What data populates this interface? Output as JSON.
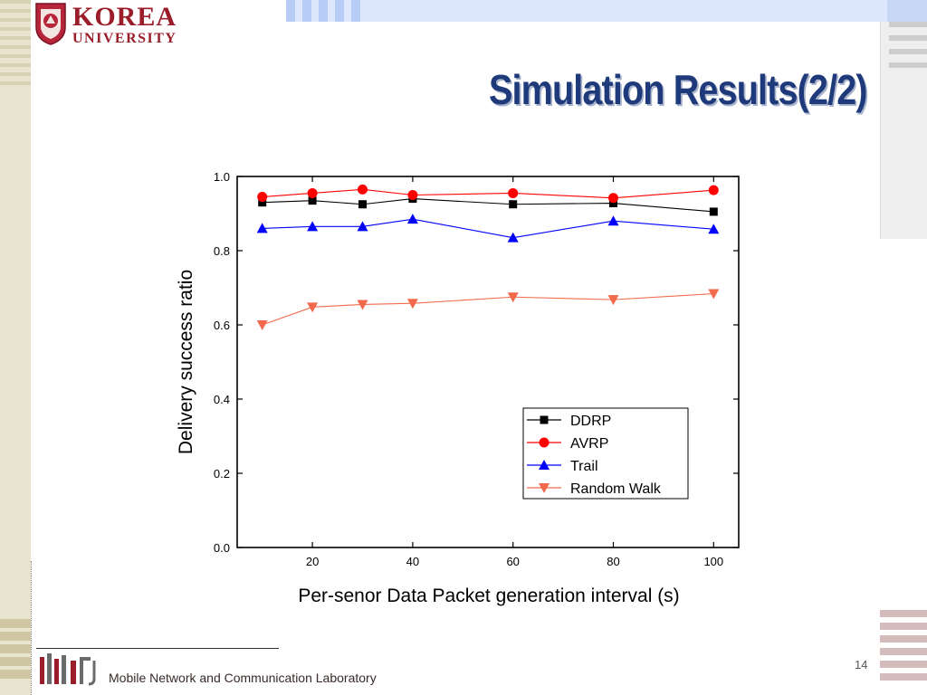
{
  "logo": {
    "name_top": "KOREA",
    "name_bottom": "UNIVERSITY",
    "brand_color": "#9b1d2a"
  },
  "slide": {
    "title": "Simulation Results(2/2)",
    "footer_text": "Mobile Network and Communication Laboratory",
    "page_number": "14",
    "title_color": "#1f3a7a"
  },
  "chart_data": {
    "type": "line",
    "xlabel": "Per-senor Data Packet generation interval (s)",
    "ylabel": "Delivery success ratio",
    "xlim": [
      5,
      105
    ],
    "ylim": [
      0,
      1.0
    ],
    "xticks": [
      20,
      40,
      60,
      80,
      100
    ],
    "yticks": [
      0.0,
      0.2,
      0.4,
      0.6,
      0.8,
      1.0
    ],
    "grid": false,
    "legend_position": "bottom-right",
    "x": [
      10,
      20,
      30,
      40,
      60,
      80,
      100
    ],
    "series": [
      {
        "name": "DDRP",
        "color": "#000000",
        "marker": "square",
        "values": [
          0.93,
          0.935,
          0.925,
          0.94,
          0.925,
          0.928,
          0.905
        ]
      },
      {
        "name": "AVRP",
        "color": "#ff0000",
        "marker": "circle",
        "values": [
          0.945,
          0.955,
          0.965,
          0.95,
          0.955,
          0.942,
          0.963
        ]
      },
      {
        "name": "Trail",
        "color": "#0000ff",
        "marker": "triangle-up",
        "values": [
          0.86,
          0.865,
          0.865,
          0.885,
          0.835,
          0.88,
          0.858
        ]
      },
      {
        "name": "Random Walk",
        "color": "#f26a4b",
        "marker": "triangle-down",
        "values": [
          0.6,
          0.648,
          0.655,
          0.658,
          0.675,
          0.668,
          0.684
        ]
      }
    ]
  }
}
